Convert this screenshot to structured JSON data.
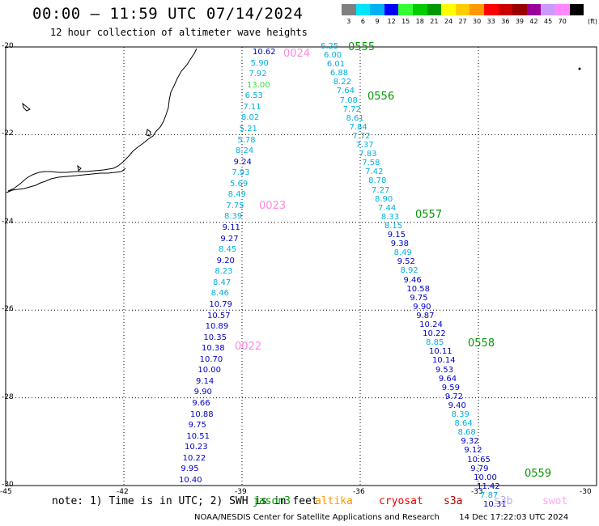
{
  "header": {
    "title": "00:00 — 11:59 UTC 07/14/2024",
    "subtitle": "12 hour collection of altimeter wave heights"
  },
  "color_scale": {
    "unit": "(ft)",
    "items": [
      {
        "label": "3",
        "color": "#808080"
      },
      {
        "label": "6",
        "color": "#00e5ff"
      },
      {
        "label": "9",
        "color": "#00b0f0"
      },
      {
        "label": "12",
        "color": "#0000ff"
      },
      {
        "label": "15",
        "color": "#33ff33"
      },
      {
        "label": "18",
        "color": "#00cc00"
      },
      {
        "label": "21",
        "color": "#009900"
      },
      {
        "label": "24",
        "color": "#ffff00"
      },
      {
        "label": "27",
        "color": "#ffcc00"
      },
      {
        "label": "30",
        "color": "#ff9900"
      },
      {
        "label": "33",
        "color": "#ff0000"
      },
      {
        "label": "36",
        "color": "#cc0000"
      },
      {
        "label": "39",
        "color": "#990000"
      },
      {
        "label": "42",
        "color": "#990099"
      },
      {
        "label": "45",
        "color": "#cc99ff"
      },
      {
        "label": "70",
        "color": "#ff88ff"
      },
      {
        "label": "",
        "color": "#000000"
      }
    ]
  },
  "map_data": {
    "lat_range": [
      -30,
      -20
    ],
    "lon_range": [
      -45,
      -30
    ],
    "lat_ticks": [
      "-20",
      "-22",
      "-24",
      "-26",
      "-28",
      "-30"
    ],
    "lon_ticks": [
      "-45",
      "-42",
      "-39",
      "-36",
      "-33",
      "-30"
    ],
    "passes": [
      {
        "label": "0024",
        "color": "#ff88dd"
      },
      {
        "label": "0023",
        "color": "#ff88dd"
      },
      {
        "label": "0022",
        "color": "#ff88dd"
      },
      {
        "label": "0555",
        "color": "#009900"
      },
      {
        "label": "0556",
        "color": "#009900"
      },
      {
        "label": "0557",
        "color": "#009900"
      },
      {
        "label": "0558",
        "color": "#009900"
      },
      {
        "label": "0559",
        "color": "#009900"
      }
    ],
    "track_left": [
      {
        "v": "10.62",
        "c": "#0000cc"
      },
      {
        "v": "5.90",
        "c": "#00b0e0"
      },
      {
        "v": "7.92",
        "c": "#00b0e0"
      },
      {
        "v": "13.00",
        "c": "#33dd33"
      },
      {
        "v": "6.53",
        "c": "#00b0e0"
      },
      {
        "v": "7.11",
        "c": "#00b0e0"
      },
      {
        "v": "8.02",
        "c": "#00b0e0"
      },
      {
        "v": "5.21",
        "c": "#00b0e0"
      },
      {
        "v": "5.78",
        "c": "#00b0e0"
      },
      {
        "v": "8.24",
        "c": "#00b0e0"
      },
      {
        "v": "9.24",
        "c": "#0000cc"
      },
      {
        "v": "7.93",
        "c": "#00b0e0"
      },
      {
        "v": "5.69",
        "c": "#00b0e0"
      },
      {
        "v": "8.49",
        "c": "#00b0e0"
      },
      {
        "v": "7.75",
        "c": "#00b0e0"
      },
      {
        "v": "8.39",
        "c": "#00b0e0"
      },
      {
        "v": "9.11",
        "c": "#0000cc"
      },
      {
        "v": "9.27",
        "c": "#0000cc"
      },
      {
        "v": "8.45",
        "c": "#00b0e0"
      },
      {
        "v": "9.20",
        "c": "#0000cc"
      },
      {
        "v": "8.23",
        "c": "#00b0e0"
      },
      {
        "v": "8.47",
        "c": "#00b0e0"
      },
      {
        "v": "8.46",
        "c": "#00b0e0"
      },
      {
        "v": "10.79",
        "c": "#0000cc"
      },
      {
        "v": "10.57",
        "c": "#0000cc"
      },
      {
        "v": "10.89",
        "c": "#0000cc"
      },
      {
        "v": "10.35",
        "c": "#0000cc"
      },
      {
        "v": "10.38",
        "c": "#0000cc"
      },
      {
        "v": "10.70",
        "c": "#0000cc"
      },
      {
        "v": "10.00",
        "c": "#0000cc"
      },
      {
        "v": "9.14",
        "c": "#0000cc"
      },
      {
        "v": "9.90",
        "c": "#0000cc"
      },
      {
        "v": "9.66",
        "c": "#0000cc"
      },
      {
        "v": "10.88",
        "c": "#0000cc"
      },
      {
        "v": "9.75",
        "c": "#0000cc"
      },
      {
        "v": "10.51",
        "c": "#0000cc"
      },
      {
        "v": "10.23",
        "c": "#0000cc"
      },
      {
        "v": "10.22",
        "c": "#0000cc"
      },
      {
        "v": "9.95",
        "c": "#0000cc"
      },
      {
        "v": "10.40",
        "c": "#0000cc"
      }
    ],
    "track_right": [
      {
        "v": "6.25",
        "c": "#00b0e0"
      },
      {
        "v": "6.00",
        "c": "#00b0e0"
      },
      {
        "v": "6.01",
        "c": "#00b0e0"
      },
      {
        "v": "6.88",
        "c": "#00b0e0"
      },
      {
        "v": "8.22",
        "c": "#00b0e0"
      },
      {
        "v": "7.64",
        "c": "#00b0e0"
      },
      {
        "v": "7.08",
        "c": "#00b0e0"
      },
      {
        "v": "7.72",
        "c": "#00b0e0"
      },
      {
        "v": "8.61",
        "c": "#00b0e0"
      },
      {
        "v": "7.84",
        "c": "#00b0e0"
      },
      {
        "v": "7.72",
        "c": "#00b0e0"
      },
      {
        "v": "7.37",
        "c": "#00b0e0"
      },
      {
        "v": "7.83",
        "c": "#00b0e0"
      },
      {
        "v": "7.58",
        "c": "#00b0e0"
      },
      {
        "v": "7.42",
        "c": "#00b0e0"
      },
      {
        "v": "8.78",
        "c": "#00b0e0"
      },
      {
        "v": "7.27",
        "c": "#00b0e0"
      },
      {
        "v": "8.90",
        "c": "#00b0e0"
      },
      {
        "v": "7.44",
        "c": "#00b0e0"
      },
      {
        "v": "8.33",
        "c": "#00b0e0"
      },
      {
        "v": "8.15",
        "c": "#00b0e0"
      },
      {
        "v": "9.15",
        "c": "#0000cc"
      },
      {
        "v": "9.38",
        "c": "#0000cc"
      },
      {
        "v": "8.49",
        "c": "#00b0e0"
      },
      {
        "v": "9.52",
        "c": "#0000cc"
      },
      {
        "v": "8.92",
        "c": "#00b0e0"
      },
      {
        "v": "9.46",
        "c": "#0000cc"
      },
      {
        "v": "10.58",
        "c": "#0000cc"
      },
      {
        "v": "9.75",
        "c": "#0000cc"
      },
      {
        "v": "9.90",
        "c": "#0000cc"
      },
      {
        "v": "9.87",
        "c": "#0000cc"
      },
      {
        "v": "10.24",
        "c": "#0000cc"
      },
      {
        "v": "10.22",
        "c": "#0000cc"
      },
      {
        "v": "8.85",
        "c": "#00b0e0"
      },
      {
        "v": "10.11",
        "c": "#0000cc"
      },
      {
        "v": "10.14",
        "c": "#0000cc"
      },
      {
        "v": "9.53",
        "c": "#0000cc"
      },
      {
        "v": "9.64",
        "c": "#0000cc"
      },
      {
        "v": "9.59",
        "c": "#0000cc"
      },
      {
        "v": "9.72",
        "c": "#0000cc"
      },
      {
        "v": "9.40",
        "c": "#0000cc"
      },
      {
        "v": "8.39",
        "c": "#00b0e0"
      },
      {
        "v": "8.64",
        "c": "#00b0e0"
      },
      {
        "v": "8.68",
        "c": "#00b0e0"
      },
      {
        "v": "9.32",
        "c": "#0000cc"
      },
      {
        "v": "9.12",
        "c": "#0000cc"
      },
      {
        "v": "10.65",
        "c": "#0000cc"
      },
      {
        "v": "9.79",
        "c": "#0000cc"
      },
      {
        "v": "10.00",
        "c": "#0000cc"
      },
      {
        "v": "11.42",
        "c": "#0000cc"
      },
      {
        "v": "7.87",
        "c": "#00b0e0"
      },
      {
        "v": "10.31",
        "c": "#0000cc"
      }
    ]
  },
  "note": {
    "text": "note: 1) Time is in UTC; 2) SWH is in feet",
    "satellites": [
      {
        "name": "jason3",
        "color": "#009900"
      },
      {
        "name": "altika",
        "color": "#ff9900"
      },
      {
        "name": "cryosat",
        "color": "#ee0000"
      },
      {
        "name": "s3a",
        "color": "#aa0000"
      },
      {
        "name": "s3b",
        "color": "#b8a8ee"
      },
      {
        "name": "swot",
        "color": "#ffaaee"
      }
    ]
  },
  "footer": {
    "credit": "NOAA/NESDIS Center for Satellite Applications and Research",
    "timestamp": "14 Dec 17:22:03 UTC 2024"
  }
}
